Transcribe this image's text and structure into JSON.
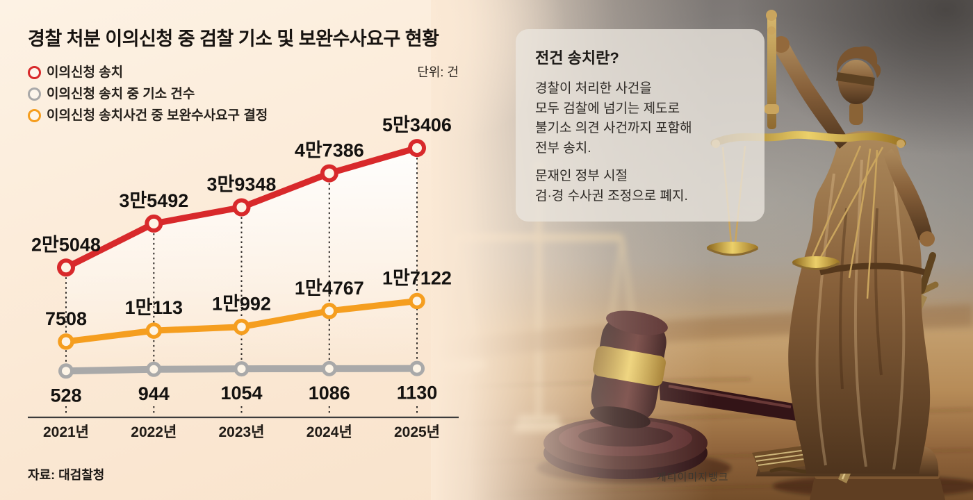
{
  "header": {
    "title": "경찰 처분 이의신청 중 검찰 기소 및 보완수사요구 현황",
    "unit_label": "단위: 건"
  },
  "legend": [
    {
      "label": "이의신청 송치",
      "color": "#d8292b"
    },
    {
      "label": "이의신청 송치 중 기소 건수",
      "color": "#a9a9a9"
    },
    {
      "label": "이의신청 송치사건 중 보완수사요구 결정",
      "color": "#f59e1f"
    }
  ],
  "chart_data": {
    "type": "line",
    "categories": [
      "2021년",
      "2022년",
      "2023년",
      "2024년",
      "2025년"
    ],
    "series": [
      {
        "name": "이의신청 송치",
        "color": "#d8292b",
        "values": [
          25048,
          35492,
          39348,
          47386,
          53406
        ],
        "value_labels": [
          "2만5048",
          "3만5492",
          "3만9348",
          "4만7386",
          "5만3406"
        ],
        "label_position": "above",
        "marker": "open-circle"
      },
      {
        "name": "이의신청 송치사건 중 보완수사요구 결정",
        "color": "#f59e1f",
        "values": [
          7508,
          10113,
          10992,
          14767,
          17122
        ],
        "value_labels": [
          "7508",
          "1만113",
          "1만992",
          "1만4767",
          "1만7122"
        ],
        "label_position": "above",
        "marker": "open-circle"
      },
      {
        "name": "이의신청 송치 중 기소 건수",
        "color": "#a9a9a9",
        "values": [
          528,
          944,
          1054,
          1086,
          1130
        ],
        "value_labels": [
          "528",
          "944",
          "1054",
          "1086",
          "1130"
        ],
        "label_position": "below",
        "marker": "open-circle"
      }
    ],
    "ylim": [
      0,
      56000
    ],
    "grid": false,
    "guide_lines": "dotted-vertical",
    "legend_position": "top-left",
    "title": "경찰 처분 이의신청 중 검찰 기소 및 보완수사요구 현황",
    "xlabel": "",
    "ylabel": "단위: 건"
  },
  "info_box": {
    "title": "전건 송치란?",
    "paragraph1": [
      "경찰이 처리한 사건을",
      "모두 검찰에 넘기는 제도로",
      "불기소 의견 사건까지 포함해",
      "전부 송치."
    ],
    "paragraph2": [
      "문재인 정부 시절",
      "검·경 수사권 조정으로 폐지."
    ]
  },
  "footer": {
    "source_label": "자료: 대검찰청"
  },
  "photo": {
    "credit_label": "게티이미지뱅크"
  },
  "colors": {
    "background_left": "#fbe9d5",
    "guide_line": "#2f2b28",
    "axis": "#3b3b3b",
    "marker_fill": "#fdf4e6"
  }
}
